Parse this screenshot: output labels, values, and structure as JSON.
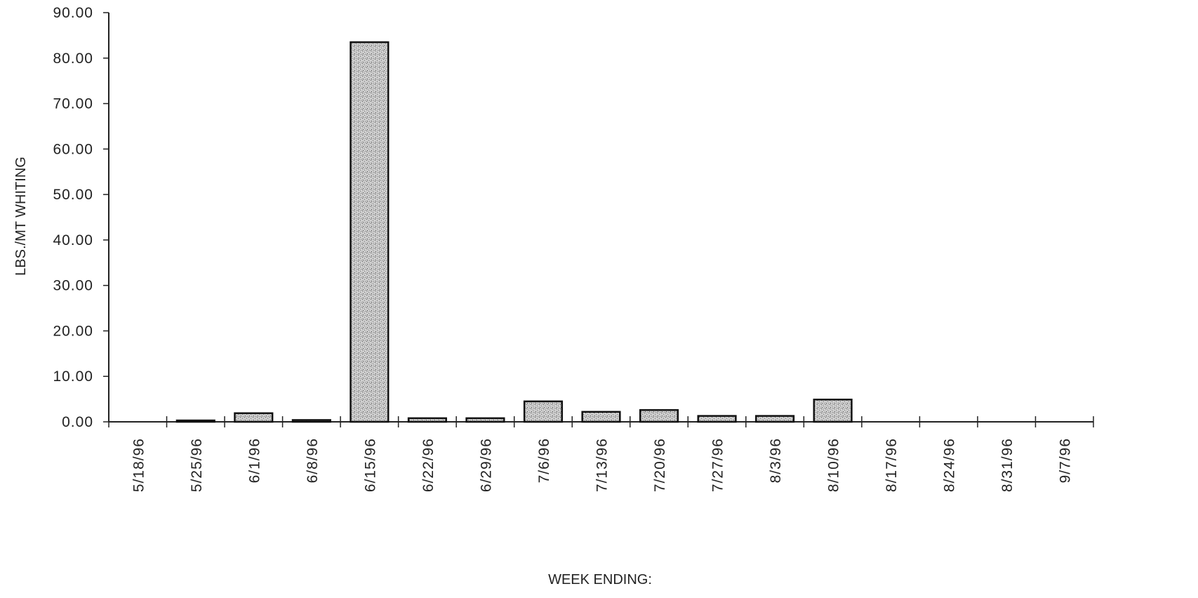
{
  "chart_data": {
    "type": "bar",
    "title": "",
    "xlabel": "WEEK ENDING:",
    "ylabel": "LBS./MT WHITING",
    "ylim": [
      0,
      90
    ],
    "yticks": [
      "0.00",
      "10.00",
      "20.00",
      "30.00",
      "40.00",
      "50.00",
      "60.00",
      "70.00",
      "80.00",
      "90.00"
    ],
    "grid": false,
    "legend": "none",
    "categories": [
      "5/18/96",
      "5/25/96",
      "6/1/96",
      "6/8/96",
      "6/15/96",
      "6/22/96",
      "6/29/96",
      "7/6/96",
      "7/13/96",
      "7/20/96",
      "7/27/96",
      "8/3/96",
      "8/10/96",
      "8/17/96",
      "8/24/96",
      "8/31/96",
      "9/7/96"
    ],
    "values": [
      0,
      0.05,
      1.9,
      0.4,
      83.5,
      0.8,
      0.8,
      4.5,
      2.2,
      2.6,
      1.3,
      1.3,
      4.9,
      0,
      0,
      0,
      0
    ],
    "bar_color": "#c4c4c4"
  }
}
